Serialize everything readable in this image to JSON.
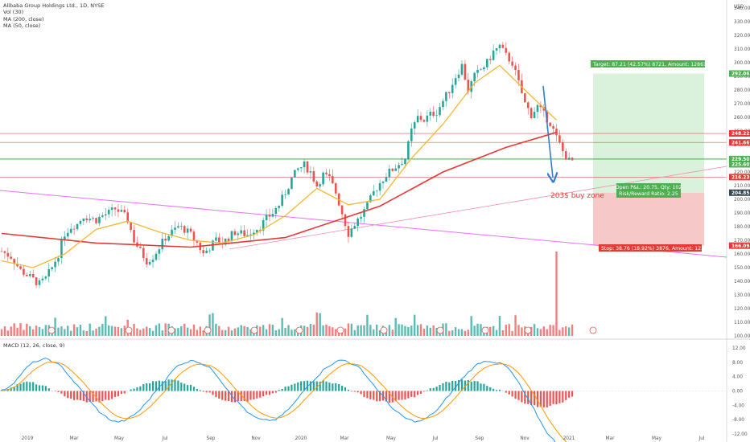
{
  "legend": {
    "title": "Alibaba Group Holdings Ltd., 1D, NYSE",
    "vol": "Vol (30)",
    "ma1": "MA (200, close)",
    "ma2": "MA (50, close)"
  },
  "macd_label": "MACD (12, 26, close, 9)",
  "currency": "USD",
  "colors": {
    "up": "#26a69a",
    "down": "#ef5350",
    "ma50": "#f5b731",
    "ma200": "#e53935",
    "target_zone": "#daf2dc",
    "stop_zone": "#f6c9c8",
    "arrow": "#2f80d1",
    "trend_magenta": "#e040fb",
    "macd_line": "#2196f3",
    "signal_line": "#ff9800"
  },
  "chart_data": {
    "type": "line",
    "title": "Alibaba Group Holdings Ltd., 1D, NYSE",
    "y_axis": {
      "ticks": [
        "340.00",
        "330.00",
        "320.00",
        "310.00",
        "300.00",
        "290.00",
        "280.00",
        "270.00",
        "260.00",
        "250.00",
        "240.00",
        "230.00",
        "220.00",
        "210.00",
        "200.00",
        "190.00",
        "180.00",
        "170.00",
        "160.00",
        "150.00",
        "140.00",
        "130.00",
        "120.00",
        "110.00",
        "100.00"
      ],
      "ylim": [
        100,
        340
      ]
    },
    "x_axis": {
      "ticks": [
        "2019",
        "Mar",
        "May",
        "Jul",
        "Sep",
        "Nov",
        "2020",
        "Mar",
        "May",
        "Jul",
        "Sep",
        "Nov",
        "2021",
        "Mar",
        "May",
        "Jul"
      ]
    },
    "price_close_approx": [
      [
        0,
        162
      ],
      [
        3,
        158
      ],
      [
        6,
        148
      ],
      [
        9,
        143
      ],
      [
        12,
        138
      ],
      [
        14,
        142
      ],
      [
        16,
        150
      ],
      [
        18,
        160
      ],
      [
        20,
        175
      ],
      [
        22,
        180
      ],
      [
        24,
        182
      ],
      [
        26,
        188
      ],
      [
        28,
        186
      ],
      [
        30,
        185
      ],
      [
        32,
        188
      ],
      [
        34,
        190
      ],
      [
        36,
        193
      ],
      [
        38,
        190
      ],
      [
        40,
        185
      ],
      [
        42,
        170
      ],
      [
        44,
        162
      ],
      [
        46,
        155
      ],
      [
        48,
        158
      ],
      [
        50,
        165
      ],
      [
        52,
        172
      ],
      [
        54,
        176
      ],
      [
        56,
        180
      ],
      [
        58,
        178
      ],
      [
        60,
        174
      ],
      [
        62,
        168
      ],
      [
        64,
        160
      ],
      [
        66,
        165
      ],
      [
        68,
        170
      ],
      [
        70,
        168
      ],
      [
        72,
        172
      ],
      [
        74,
        176
      ],
      [
        76,
        175
      ],
      [
        78,
        174
      ],
      [
        80,
        178
      ],
      [
        82,
        180
      ],
      [
        84,
        186
      ],
      [
        86,
        190
      ],
      [
        88,
        196
      ],
      [
        90,
        205
      ],
      [
        92,
        215
      ],
      [
        94,
        222
      ],
      [
        96,
        225
      ],
      [
        98,
        220
      ],
      [
        100,
        210
      ],
      [
        102,
        218
      ],
      [
        104,
        215
      ],
      [
        106,
        205
      ],
      [
        108,
        190
      ],
      [
        110,
        175
      ],
      [
        112,
        182
      ],
      [
        114,
        188
      ],
      [
        116,
        195
      ],
      [
        118,
        205
      ],
      [
        120,
        212
      ],
      [
        122,
        218
      ],
      [
        124,
        222
      ],
      [
        126,
        226
      ],
      [
        128,
        230
      ],
      [
        130,
        250
      ],
      [
        132,
        260
      ],
      [
        134,
        258
      ],
      [
        136,
        262
      ],
      [
        138,
        264
      ],
      [
        140,
        272
      ],
      [
        142,
        280
      ],
      [
        144,
        290
      ],
      [
        146,
        298
      ],
      [
        148,
        280
      ],
      [
        150,
        290
      ],
      [
        152,
        295
      ],
      [
        154,
        300
      ],
      [
        156,
        308
      ],
      [
        158,
        312
      ],
      [
        160,
        305
      ],
      [
        162,
        300
      ],
      [
        164,
        285
      ],
      [
        166,
        270
      ],
      [
        168,
        262
      ],
      [
        170,
        268
      ],
      [
        172,
        262
      ],
      [
        174,
        256
      ],
      [
        176,
        245
      ],
      [
        178,
        235
      ],
      [
        180,
        228
      ],
      [
        182,
        228
      ]
    ],
    "ma50_approx": [
      [
        0,
        155
      ],
      [
        10,
        150
      ],
      [
        20,
        160
      ],
      [
        30,
        178
      ],
      [
        40,
        184
      ],
      [
        50,
        176
      ],
      [
        60,
        170
      ],
      [
        70,
        168
      ],
      [
        80,
        174
      ],
      [
        90,
        188
      ],
      [
        100,
        208
      ],
      [
        110,
        196
      ],
      [
        120,
        200
      ],
      [
        130,
        230
      ],
      [
        140,
        255
      ],
      [
        150,
        285
      ],
      [
        158,
        298
      ],
      [
        166,
        280
      ],
      [
        176,
        258
      ]
    ],
    "ma200_approx": [
      [
        0,
        175
      ],
      [
        30,
        168
      ],
      [
        60,
        165
      ],
      [
        90,
        172
      ],
      [
        120,
        195
      ],
      [
        140,
        220
      ],
      [
        160,
        238
      ],
      [
        176,
        249
      ]
    ],
    "horizontal_levels": [
      {
        "value": "248.22",
        "color": "#e53935"
      },
      {
        "value": "241.66",
        "color": "#e53935"
      },
      {
        "value": "229.50",
        "color": "#4caf50"
      },
      {
        "value": "216.23",
        "color": "#e53935"
      }
    ],
    "price_labels": [
      {
        "text": "292.06",
        "bg": "#4caf50"
      },
      {
        "text": "248.22",
        "bg": "#e53935"
      },
      {
        "text": "241.66",
        "bg": "#e53935"
      },
      {
        "text": "229.50",
        "bg": "#4caf50"
      },
      {
        "text": "225.60",
        "bg": "#4caf50"
      },
      {
        "text": "216.23",
        "bg": "#e53935"
      },
      {
        "text": "204.85",
        "bg": "#37474f"
      },
      {
        "text": "166.09",
        "bg": "#e53935"
      }
    ],
    "position": {
      "target": "Target: 87.21 (42.57%) 8721, Amount: 12861.42",
      "open": "Open P&L: 20.75, Qty: 102",
      "ratio": "Risk/Reward Ratio: 2.25",
      "stop": "Stop: 38.76 (18.92%) 3876, Amount: 12.48"
    },
    "annotation": "203$ buy zone",
    "macd_axis": {
      "ticks": [
        "12.00",
        "8.00",
        "4.00",
        "0.00",
        "-4.00",
        "-8.00",
        "-12.00"
      ]
    }
  }
}
